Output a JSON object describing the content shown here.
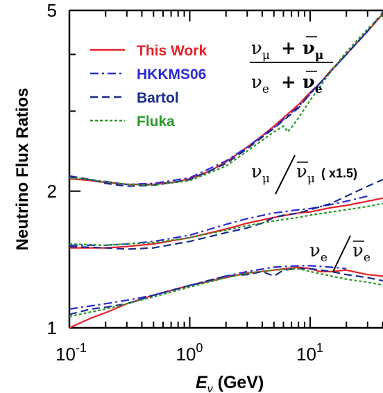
{
  "chart_data": {
    "type": "line",
    "xlabel_main": "E",
    "xlabel_sub": "ν",
    "xlabel_unit": " (GeV)",
    "ylabel": "Neutrino Flux Ratios",
    "x_scale": "log",
    "y_scale": "log",
    "xlim": [
      0.1,
      50
    ],
    "ylim": [
      1,
      5
    ],
    "x_ticks": [
      {
        "value": 0.1,
        "base": "10",
        "exp": "-1"
      },
      {
        "value": 1,
        "base": "10",
        "exp": "0"
      },
      {
        "value": 10,
        "base": "10",
        "exp": "1"
      }
    ],
    "y_ticks": [
      {
        "value": 1,
        "label": "1"
      },
      {
        "value": 2,
        "label": "2"
      },
      {
        "value": 5,
        "label": "5"
      }
    ],
    "legend_position": "top-left",
    "annotations": {
      "mu_ratio": {
        "num": "ν",
        "num_sub": "μ",
        "num2": "+ ν",
        "num2_sub": "μ",
        "den": "ν",
        "den_sub": "e",
        "den2": "+ ν",
        "den2_sub": "e"
      },
      "mu_pair": {
        "a": "ν",
        "a_sub": "μ",
        "b": "ν",
        "b_sub": "μ",
        "note": "( x1.5)"
      },
      "e_pair": {
        "a": "ν",
        "a_sub": "e",
        "b": "ν",
        "b_sub": "e"
      }
    },
    "series": [
      {
        "name": "This Work",
        "color": "#e8202a",
        "dash": "solid",
        "curves": [
          {
            "x": [
              0.1,
              0.15,
              0.2,
              0.3,
              0.5,
              0.8,
              1,
              1.5,
              2,
              3,
              4,
              5,
              6,
              8,
              10,
              12,
              15,
              20,
              30,
              40,
              50
            ],
            "y": [
              2.13,
              2.11,
              2.09,
              2.07,
              2.07,
              2.1,
              2.13,
              2.22,
              2.32,
              2.5,
              2.65,
              2.78,
              2.9,
              3.1,
              3.3,
              3.45,
              3.7,
              4.0,
              4.5,
              4.9,
              5.2
            ]
          },
          {
            "x": [
              0.1,
              0.2,
              0.3,
              0.5,
              1,
              2,
              3,
              5,
              8,
              10,
              15,
              20,
              30,
              40,
              50
            ],
            "y": [
              1.5,
              1.5,
              1.51,
              1.53,
              1.58,
              1.65,
              1.7,
              1.75,
              1.79,
              1.8,
              1.84,
              1.86,
              1.9,
              1.93,
              1.95
            ]
          },
          {
            "x": [
              0.1,
              0.15,
              0.2,
              0.3,
              0.5,
              1,
              2,
              3,
              5,
              8,
              10,
              12,
              15,
              20,
              30,
              40,
              50
            ],
            "y": [
              1.0,
              1.05,
              1.08,
              1.13,
              1.18,
              1.24,
              1.29,
              1.32,
              1.34,
              1.36,
              1.35,
              1.33,
              1.33,
              1.34,
              1.31,
              1.3,
              1.29
            ]
          }
        ]
      },
      {
        "name": "HKKMS06",
        "color": "#2a2ad8",
        "dash": "dashdot",
        "curves": [
          {
            "x": [
              0.1,
              0.15,
              0.2,
              0.3,
              0.5,
              1,
              2,
              3,
              5,
              8,
              10,
              15,
              20,
              30
            ],
            "y": [
              2.15,
              2.12,
              2.1,
              2.07,
              2.08,
              2.14,
              2.33,
              2.5,
              2.76,
              3.07,
              3.27,
              3.68,
              4.0,
              4.5
            ]
          },
          {
            "x": [
              0.1,
              0.2,
              0.3,
              0.5,
              1,
              2,
              3,
              5,
              8,
              10,
              15,
              20,
              30
            ],
            "y": [
              1.52,
              1.52,
              1.53,
              1.55,
              1.6,
              1.69,
              1.74,
              1.79,
              1.82,
              1.83,
              1.87,
              1.9,
              1.95
            ]
          },
          {
            "x": [
              0.1,
              0.2,
              0.3,
              0.5,
              1,
              2,
              3,
              5,
              8,
              10,
              15,
              20
            ],
            "y": [
              1.1,
              1.13,
              1.15,
              1.18,
              1.24,
              1.3,
              1.33,
              1.36,
              1.37,
              1.37,
              1.36,
              1.35
            ]
          }
        ]
      },
      {
        "name": "Bartol",
        "color": "#1a2a8c",
        "dash": "dashed",
        "curves": [
          {
            "x": [
              0.1,
              0.15,
              0.2,
              0.3,
              0.5,
              1,
              2,
              3,
              5,
              8,
              10,
              15,
              20,
              30,
              40,
              50
            ],
            "y": [
              2.16,
              2.12,
              2.08,
              2.05,
              2.06,
              2.12,
              2.3,
              2.48,
              2.75,
              3.05,
              3.28,
              3.68,
              4.0,
              4.5,
              4.95,
              5.25
            ]
          },
          {
            "x": [
              0.1,
              0.2,
              0.3,
              0.5,
              1,
              2,
              3,
              4,
              5,
              6,
              8,
              10,
              15,
              20,
              30,
              40,
              50
            ],
            "y": [
              1.51,
              1.5,
              1.49,
              1.5,
              1.55,
              1.62,
              1.66,
              1.7,
              1.75,
              1.77,
              1.79,
              1.82,
              1.88,
              1.95,
              2.05,
              2.12,
              2.15
            ]
          },
          {
            "x": [
              0.1,
              0.15,
              0.2,
              0.3,
              0.5,
              1,
              2,
              3,
              4,
              5,
              6,
              8,
              10,
              15,
              20,
              30,
              40,
              50
            ],
            "y": [
              1.07,
              1.1,
              1.11,
              1.13,
              1.18,
              1.24,
              1.3,
              1.31,
              1.33,
              1.3,
              1.34,
              1.35,
              1.35,
              1.33,
              1.31,
              1.29,
              1.27,
              1.26
            ]
          }
        ]
      },
      {
        "name": "Fluka",
        "color": "#2a9a2a",
        "dash": "dotted",
        "curves": [
          {
            "x": [
              0.1,
              0.15,
              0.2,
              0.3,
              0.5,
              1,
              2,
              3,
              5,
              6,
              6.5,
              7,
              8,
              10,
              15,
              20,
              30,
              50
            ],
            "y": [
              2.14,
              2.12,
              2.1,
              2.07,
              2.06,
              2.11,
              2.27,
              2.45,
              2.7,
              2.78,
              2.7,
              2.76,
              2.9,
              3.17,
              3.68,
              4.05,
              4.55,
              5.2
            ]
          },
          {
            "x": [
              0.1,
              0.2,
              0.3,
              0.5,
              1,
              2,
              3,
              5,
              8,
              10,
              15,
              20,
              30,
              50
            ],
            "y": [
              1.53,
              1.52,
              1.53,
              1.54,
              1.58,
              1.64,
              1.68,
              1.72,
              1.75,
              1.77,
              1.8,
              1.82,
              1.85,
              1.9
            ]
          },
          {
            "x": [
              0.1,
              0.2,
              0.3,
              0.5,
              1,
              2,
              3,
              5,
              8,
              10,
              15,
              20,
              30,
              50
            ],
            "y": [
              1.06,
              1.1,
              1.13,
              1.17,
              1.23,
              1.29,
              1.32,
              1.34,
              1.35,
              1.33,
              1.3,
              1.28,
              1.26,
              1.23
            ]
          }
        ]
      }
    ]
  }
}
